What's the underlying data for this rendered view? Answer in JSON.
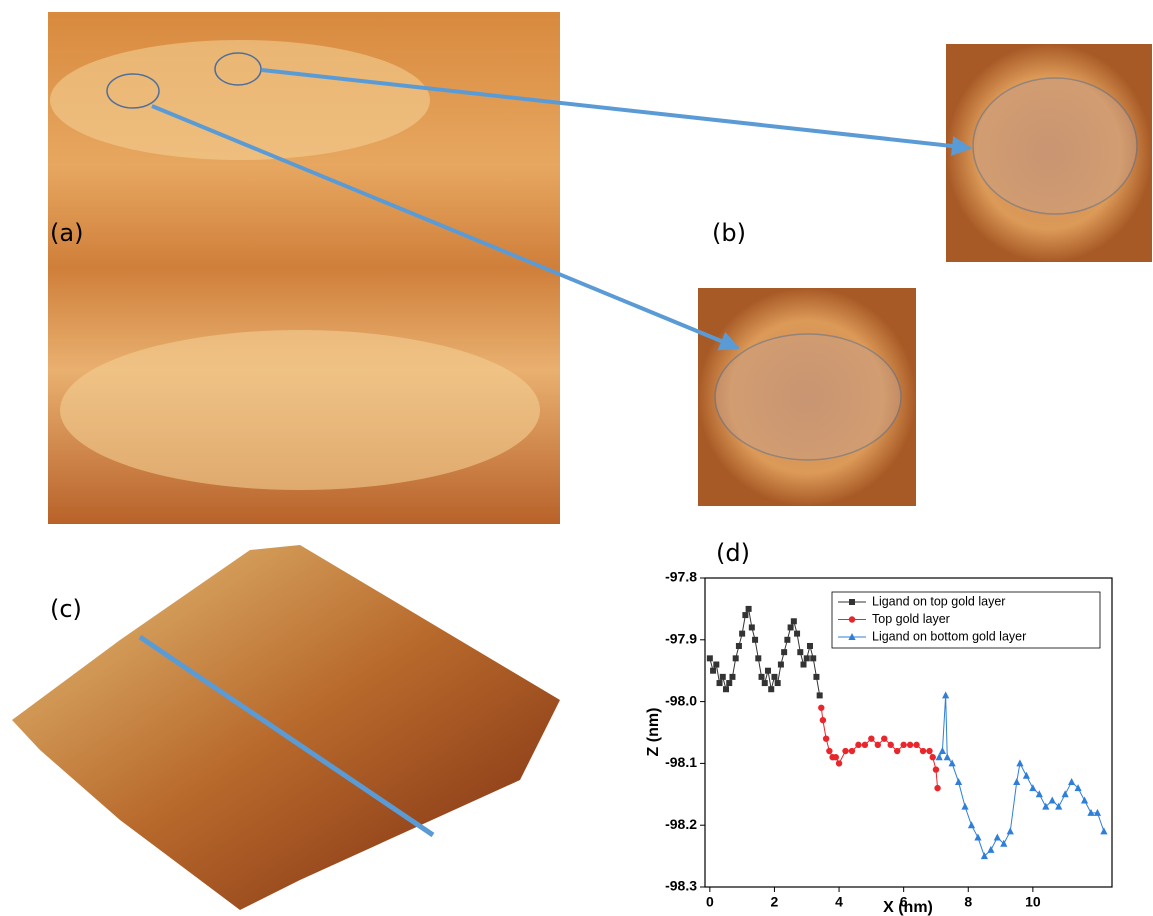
{
  "panels": {
    "a": "(a)",
    "b": "(b)",
    "c": "(c)",
    "d": "(d)"
  },
  "chart_data": {
    "type": "line",
    "xlabel": "X (nm)",
    "ylabel": "Z (nm)",
    "xlim": [
      -0.15,
      12.45
    ],
    "ylim": [
      -98.3,
      -97.8
    ],
    "xticks": [
      0,
      2,
      4,
      6,
      8,
      10
    ],
    "yticks": [
      -97.8,
      -97.9,
      {
        "value": -98,
        "label": "-98.0"
      },
      -98.1,
      -98.2,
      -98.3
    ],
    "legend": "upper right",
    "series": [
      {
        "name": "Ligand on top gold layer",
        "color": "#333333",
        "marker": "square",
        "x": [
          0.0,
          0.1,
          0.2,
          0.3,
          0.4,
          0.5,
          0.6,
          0.7,
          0.8,
          0.9,
          1.0,
          1.1,
          1.2,
          1.3,
          1.4,
          1.5,
          1.6,
          1.7,
          1.8,
          1.9,
          2.0,
          2.1,
          2.2,
          2.3,
          2.4,
          2.5,
          2.6,
          2.7,
          2.8,
          2.9,
          3.0,
          3.1,
          3.2,
          3.3,
          3.4
        ],
        "values": [
          -97.93,
          -97.95,
          -97.94,
          -97.97,
          -97.96,
          -97.98,
          -97.97,
          -97.96,
          -97.93,
          -97.91,
          -97.89,
          -97.86,
          -97.85,
          -97.88,
          -97.9,
          -97.93,
          -97.96,
          -97.97,
          -97.95,
          -97.98,
          -97.96,
          -97.97,
          -97.94,
          -97.92,
          -97.9,
          -97.88,
          -97.87,
          -97.89,
          -97.92,
          -97.94,
          -97.93,
          -97.91,
          -97.93,
          -97.96,
          -97.99
        ]
      },
      {
        "name": "Top gold layer",
        "color": "#e8262b",
        "marker": "circle",
        "x": [
          3.45,
          3.5,
          3.6,
          3.7,
          3.8,
          3.9,
          4.0,
          4.2,
          4.4,
          4.6,
          4.8,
          5.0,
          5.2,
          5.4,
          5.6,
          5.8,
          6.0,
          6.2,
          6.4,
          6.6,
          6.8,
          6.9,
          7.0,
          7.05
        ],
        "values": [
          -98.01,
          -98.03,
          -98.06,
          -98.08,
          -98.09,
          -98.09,
          -98.1,
          -98.08,
          -98.08,
          -98.07,
          -98.07,
          -98.06,
          -98.07,
          -98.06,
          -98.07,
          -98.08,
          -98.07,
          -98.07,
          -98.07,
          -98.08,
          -98.08,
          -98.09,
          -98.11,
          -98.14
        ]
      },
      {
        "name": "Ligand on bottom gold layer",
        "color": "#2f7fd8",
        "marker": "triangle",
        "x": [
          7.1,
          7.2,
          7.3,
          7.35,
          7.5,
          7.7,
          7.9,
          8.1,
          8.3,
          8.5,
          8.7,
          8.9,
          9.1,
          9.3,
          9.5,
          9.6,
          9.8,
          10.0,
          10.2,
          10.4,
          10.6,
          10.8,
          11.0,
          11.2,
          11.4,
          11.6,
          11.8,
          12.0,
          12.2
        ],
        "values": [
          -98.09,
          -98.08,
          -97.99,
          -98.09,
          -98.1,
          -98.13,
          -98.17,
          -98.2,
          -98.22,
          -98.25,
          -98.24,
          -98.22,
          -98.23,
          -98.21,
          -98.13,
          -98.1,
          -98.12,
          -98.14,
          -98.15,
          -98.17,
          -98.16,
          -98.17,
          -98.15,
          -98.13,
          -98.14,
          -98.16,
          -98.18,
          -98.18,
          -98.21
        ]
      }
    ]
  }
}
